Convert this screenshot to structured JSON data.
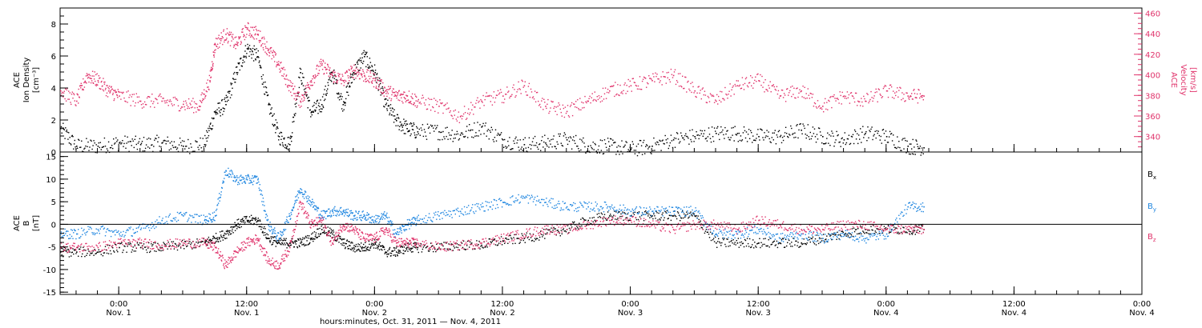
{
  "colors": {
    "density": "#000000",
    "velocity": "#e0336b",
    "bx": "#000000",
    "by": "#1f86e0",
    "bz": "#e0336b",
    "axis": "#000000"
  },
  "chart_data": [
    {
      "type": "scatter",
      "panel": "top",
      "ylabel_left": [
        "ACE",
        "Ion Density",
        "[cm⁻³]"
      ],
      "ylabel_right": [
        "ACE",
        "Velocity",
        "[km/s]"
      ],
      "ylim_left": [
        0,
        9
      ],
      "ylim_right": [
        325,
        465
      ],
      "yticks_left": [
        "0",
        "2",
        "4",
        "6",
        "8"
      ],
      "yticks_right": [
        "340",
        "360",
        "380",
        "400",
        "420",
        "440",
        "460"
      ],
      "series": [
        {
          "name": "Ion Density",
          "axis": "left",
          "x_hours": [
            -5.5,
            -4,
            -2,
            0,
            2,
            4,
            6,
            8,
            9,
            10,
            11,
            12,
            13,
            14,
            15,
            16,
            17,
            18,
            19,
            20,
            21,
            22,
            23,
            24,
            25,
            26,
            27,
            28,
            30,
            32,
            34,
            36,
            38,
            40,
            42,
            44,
            46,
            48,
            50,
            52,
            54,
            56,
            58,
            60,
            62,
            64,
            66,
            68,
            70,
            72,
            74,
            75.5
          ],
          "values": [
            1.5,
            0.4,
            0.4,
            0.6,
            0.5,
            0.6,
            0.4,
            0.5,
            2.5,
            3,
            5,
            6.5,
            6,
            3,
            1,
            0.5,
            5,
            2.5,
            3,
            5,
            3,
            5,
            6,
            5,
            3,
            2,
            1.5,
            1.3,
            1.3,
            1.1,
            1.6,
            0.8,
            0.5,
            0.6,
            0.8,
            0.4,
            0.4,
            0.2,
            0.4,
            0.8,
            1,
            1.2,
            1.2,
            1,
            1,
            1.4,
            1,
            0.8,
            1.2,
            1,
            0.4,
            0.3
          ]
        },
        {
          "name": "Velocity",
          "axis": "right",
          "x_hours": [
            -5.5,
            -4,
            -3,
            -2,
            -1,
            0,
            2,
            4,
            6,
            7.5,
            8.5,
            9,
            10,
            11,
            12,
            13,
            14,
            15,
            16,
            17,
            18,
            19,
            20,
            21,
            22,
            23,
            24,
            25,
            26,
            27,
            28,
            30,
            32,
            34,
            36,
            38,
            40,
            42,
            44,
            46,
            48,
            50,
            52,
            54,
            56,
            58,
            60,
            62,
            64,
            66,
            68,
            70,
            72,
            74,
            75.5
          ],
          "values": [
            385,
            375,
            400,
            395,
            385,
            380,
            375,
            375,
            372,
            370,
            395,
            430,
            440,
            430,
            445,
            440,
            425,
            410,
            390,
            375,
            395,
            410,
            400,
            395,
            405,
            400,
            395,
            385,
            380,
            380,
            375,
            370,
            360,
            375,
            380,
            390,
            370,
            365,
            375,
            385,
            390,
            395,
            400,
            385,
            375,
            390,
            395,
            380,
            385,
            370,
            380,
            375,
            385,
            380,
            380
          ]
        }
      ]
    },
    {
      "type": "scatter",
      "panel": "bottom",
      "ylabel_left": [
        "ACE",
        "B",
        "[nT]"
      ],
      "ylim": [
        -15.5,
        16
      ],
      "yticks": [
        "-15",
        "-10",
        "-5",
        "0",
        "5",
        "10",
        "15"
      ],
      "xlabel": "hours:minutes, Oct. 31, 2011 — Nov.  4, 2011",
      "xlim_hours": [
        -5.5,
        96
      ],
      "xtick_hours": [
        0,
        12,
        24,
        36,
        48,
        60,
        72,
        84,
        96
      ],
      "xtick_time": [
        "0:00",
        "12:00",
        "0:00",
        "12:00",
        "0:00",
        "12:00",
        "0:00",
        "12:00",
        "0:00"
      ],
      "xtick_date": [
        "Nov. 1",
        "Nov. 1",
        "Nov. 2",
        "Nov. 2",
        "Nov. 3",
        "Nov. 3",
        "Nov. 4",
        "Nov. 4",
        "Nov. 4"
      ],
      "legend": [
        "B",
        "B",
        "B"
      ],
      "legend_sub": [
        "x",
        "y",
        "z"
      ],
      "legend_placement": "right",
      "series": [
        {
          "name": "Bx",
          "x_hours": [
            -5.5,
            -4,
            -2,
            0,
            2,
            4,
            6,
            8,
            9,
            10,
            11,
            12,
            13,
            14,
            15,
            16,
            17,
            18,
            19,
            20,
            21,
            22,
            23,
            24,
            25,
            26,
            27,
            28,
            30,
            32,
            34,
            36,
            38,
            40,
            42,
            44,
            46,
            48,
            50,
            52,
            54,
            56,
            58,
            60,
            62,
            64,
            66,
            68,
            70,
            72,
            74,
            75.5
          ],
          "values": [
            -6,
            -6,
            -6,
            -5,
            -5,
            -5,
            -4.5,
            -4,
            -3,
            -2,
            0,
            1,
            1,
            -3,
            -4,
            -4,
            -4,
            -3,
            -1,
            -2,
            -4,
            -5,
            -5,
            -4,
            -6,
            -6,
            -5,
            -5,
            -5,
            -4.5,
            -4.5,
            -3.5,
            -3,
            -2,
            -1,
            1,
            2,
            2,
            2,
            2,
            2,
            -4,
            -4,
            -4,
            -4,
            -4,
            -3,
            -2,
            -1,
            -1,
            -1,
            -1
          ]
        },
        {
          "name": "By",
          "x_hours": [
            -5.5,
            -4,
            -2,
            0,
            2,
            4,
            6,
            8,
            9,
            10,
            11,
            12,
            13,
            14,
            15,
            16,
            17,
            18,
            19,
            20,
            21,
            22,
            23,
            24,
            25,
            26,
            27,
            28,
            30,
            32,
            34,
            36,
            38,
            40,
            42,
            44,
            46,
            48,
            50,
            52,
            54,
            56,
            58,
            60,
            62,
            64,
            66,
            68,
            70,
            72,
            74,
            75.5
          ],
          "values": [
            -2,
            -2,
            -1,
            -2,
            -1,
            1,
            2,
            1,
            2,
            12,
            10,
            10,
            10,
            0,
            -3,
            2,
            8,
            5,
            2,
            3,
            3,
            2,
            2,
            1,
            2,
            -2,
            0,
            1,
            2,
            3,
            4,
            5,
            6,
            5,
            4,
            4,
            4,
            3,
            3,
            3,
            3,
            -2,
            -2,
            -1,
            -3,
            -2,
            -3,
            -2,
            -3,
            -2,
            4,
            4
          ]
        },
        {
          "name": "Bz",
          "x_hours": [
            -5.5,
            -4,
            -2,
            0,
            2,
            4,
            6,
            8,
            9,
            10,
            11,
            12,
            13,
            14,
            15,
            16,
            17,
            18,
            19,
            20,
            21,
            22,
            23,
            24,
            25,
            26,
            27,
            28,
            30,
            32,
            34,
            36,
            38,
            40,
            42,
            44,
            46,
            48,
            50,
            52,
            54,
            56,
            58,
            60,
            62,
            64,
            66,
            68,
            70,
            72,
            74,
            75.5
          ],
          "values": [
            -5,
            -5,
            -5,
            -4,
            -4,
            -4.5,
            -4,
            -4,
            -5,
            -9,
            -6,
            -4,
            -3,
            -8,
            -9,
            -5,
            5,
            0,
            1,
            -4,
            0,
            -1,
            -3,
            -3,
            -1,
            -4,
            -4,
            -4,
            -5,
            -4.5,
            -4,
            -3,
            -2,
            -1,
            -1,
            0,
            1,
            1,
            0,
            -1,
            0,
            0,
            -1,
            1,
            0,
            -1,
            -1,
            0,
            0,
            -1,
            -1,
            -1
          ]
        }
      ]
    }
  ]
}
